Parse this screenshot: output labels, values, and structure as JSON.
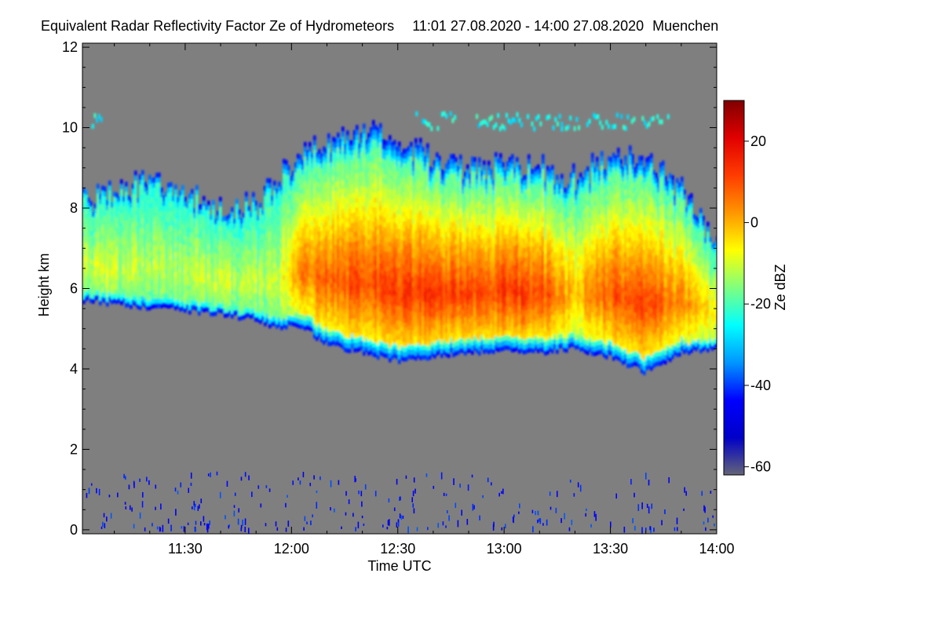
{
  "chart_data": {
    "type": "heatmap",
    "title": "Equivalent Radar Reflectivity Factor Ze of Hydrometeors",
    "time_range": "11:01 27.08.2020 - 14:00 27.08.2020",
    "location": "Muenchen",
    "xlabel": "Time UTC",
    "ylabel": "Height km",
    "colorbar_label": "Ze dBZ",
    "x_ticks": [
      "11:30",
      "12:00",
      "12:30",
      "13:00",
      "13:30",
      "14:00"
    ],
    "x_tick_minutes": [
      90,
      120,
      150,
      180,
      210,
      240
    ],
    "xlim_minutes": [
      61,
      240
    ],
    "y_ticks": [
      "0",
      "2",
      "4",
      "6",
      "8",
      "10",
      "12"
    ],
    "y_tick_values": [
      0,
      2,
      4,
      6,
      8,
      10,
      12
    ],
    "ylim": [
      -0.1,
      12.1
    ],
    "colorbar_ticks": [
      "20",
      "0",
      "-20",
      "-40",
      "-60"
    ],
    "colorbar_tick_values": [
      20,
      0,
      -20,
      -40,
      -60
    ],
    "colorbar_range": [
      -62,
      30
    ],
    "background_color": "#7f7f7f",
    "colormap": [
      "#646478",
      "#0000c8",
      "#0000ff",
      "#0096ff",
      "#00ffff",
      "#7fff7f",
      "#ffff00",
      "#ff9600",
      "#ff3c00",
      "#e10000",
      "#800000"
    ],
    "cloud_profile": [
      {
        "t": 61,
        "base": 5.7,
        "top": 8.0,
        "peak": -10
      },
      {
        "t": 70,
        "base": 5.6,
        "top": 8.2,
        "peak": -10
      },
      {
        "t": 80,
        "base": 5.5,
        "top": 8.5,
        "peak": -12
      },
      {
        "t": 90,
        "base": 5.45,
        "top": 8.2,
        "peak": -12
      },
      {
        "t": 100,
        "base": 5.35,
        "top": 7.8,
        "peak": -10
      },
      {
        "t": 110,
        "base": 5.2,
        "top": 7.9,
        "peak": -12
      },
      {
        "t": 116,
        "base": 5.0,
        "top": 8.5,
        "peak": -10
      },
      {
        "t": 122,
        "base": 5.1,
        "top": 9.0,
        "peak": 5
      },
      {
        "t": 130,
        "base": 4.6,
        "top": 9.5,
        "peak": 10
      },
      {
        "t": 140,
        "base": 4.4,
        "top": 9.7,
        "peak": 12
      },
      {
        "t": 150,
        "base": 4.2,
        "top": 9.5,
        "peak": 15
      },
      {
        "t": 160,
        "base": 4.3,
        "top": 9.0,
        "peak": 14
      },
      {
        "t": 170,
        "base": 4.4,
        "top": 8.8,
        "peak": 13
      },
      {
        "t": 180,
        "base": 4.45,
        "top": 8.9,
        "peak": 15
      },
      {
        "t": 190,
        "base": 4.4,
        "top": 8.8,
        "peak": 13
      },
      {
        "t": 200,
        "base": 4.5,
        "top": 8.5,
        "peak": 0
      },
      {
        "t": 210,
        "base": 4.3,
        "top": 9.2,
        "peak": 12
      },
      {
        "t": 220,
        "base": 3.9,
        "top": 9.0,
        "peak": 13
      },
      {
        "t": 230,
        "base": 4.4,
        "top": 8.3,
        "peak": 5
      },
      {
        "t": 240,
        "base": 4.5,
        "top": 7.0,
        "peak": -5
      }
    ],
    "upper_patches": [
      {
        "t0": 63,
        "t1": 66,
        "h0": 9.9,
        "h1": 10.3,
        "value": -25
      },
      {
        "t0": 155,
        "t1": 166,
        "h0": 9.9,
        "h1": 10.3,
        "value": -25
      },
      {
        "t0": 172,
        "t1": 196,
        "h0": 9.9,
        "h1": 10.3,
        "value": -25
      },
      {
        "t0": 196,
        "t1": 226,
        "h0": 9.9,
        "h1": 10.3,
        "value": -25
      }
    ]
  }
}
